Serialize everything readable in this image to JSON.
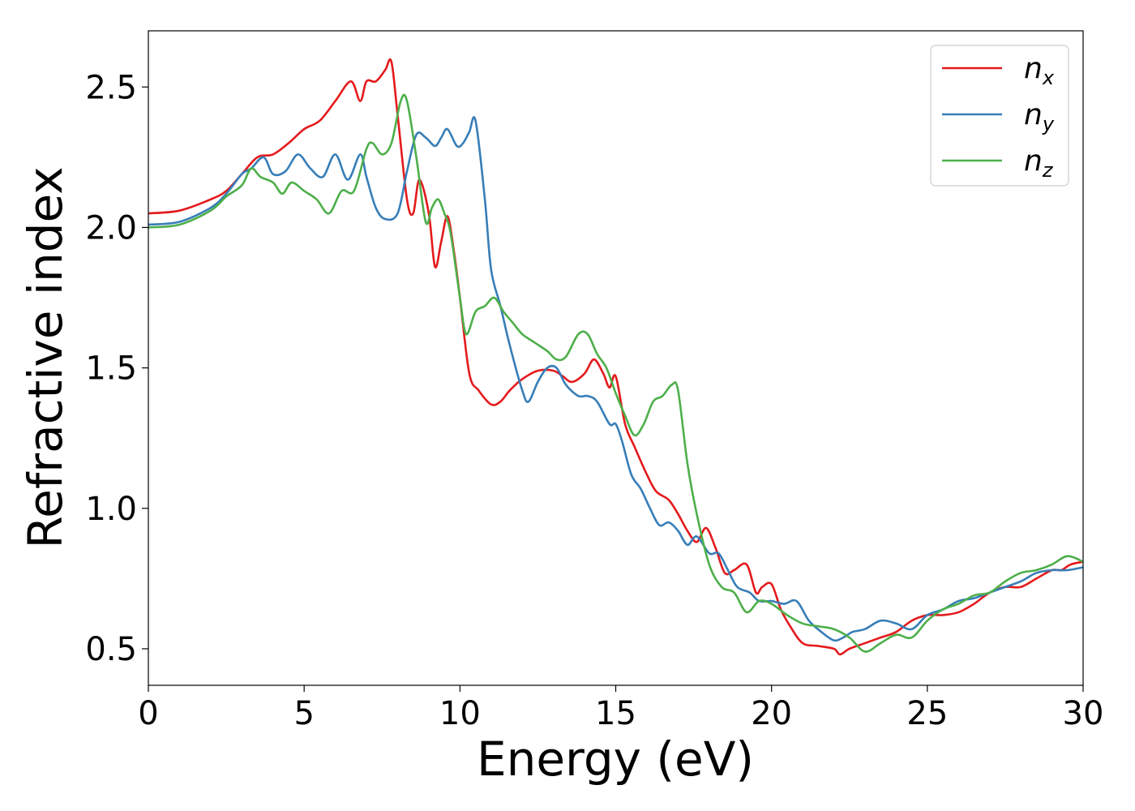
{
  "chart_data": {
    "type": "line",
    "title": "",
    "xlabel": "Energy (eV)",
    "ylabel": "Refractive index",
    "xlim": [
      0,
      30
    ],
    "ylim": [
      0.37,
      2.7
    ],
    "xticks": [
      0,
      5,
      10,
      15,
      20,
      25,
      30
    ],
    "xtick_labels": [
      "0",
      "5",
      "10",
      "15",
      "20",
      "25",
      "30"
    ],
    "yticks": [
      0.5,
      1.0,
      1.5,
      2.0,
      2.5
    ],
    "ytick_labels": [
      "0.5",
      "1.0",
      "1.5",
      "2.0",
      "2.5"
    ],
    "grid": false,
    "legend_position": "top-right",
    "series": [
      {
        "name": "n",
        "subscript": "x",
        "color": "#e41a1c",
        "x": [
          0,
          1,
          2,
          2.5,
          3,
          3.5,
          4,
          4.5,
          5,
          5.5,
          6,
          6.5,
          6.8,
          7,
          7.3,
          7.6,
          7.8,
          8,
          8.3,
          8.5,
          8.7,
          9,
          9.2,
          9.4,
          9.6,
          9.8,
          10,
          10.3,
          10.6,
          11,
          11.3,
          11.6,
          12,
          12.5,
          13,
          13.3,
          13.6,
          14,
          14.3,
          14.6,
          14.8,
          15,
          15.3,
          15.6,
          16,
          16.3,
          16.7,
          17,
          17.3,
          17.6,
          17.9,
          18.2,
          18.5,
          18.8,
          19.2,
          19.5,
          19.7,
          20,
          20.3,
          20.6,
          21,
          21.5,
          22,
          22.2,
          22.5,
          23,
          23.5,
          24,
          24.5,
          25,
          25.5,
          26,
          26.5,
          27,
          27.5,
          28,
          28.5,
          29,
          29.3,
          29.6,
          30
        ],
        "y": [
          2.05,
          2.06,
          2.1,
          2.13,
          2.19,
          2.25,
          2.26,
          2.3,
          2.35,
          2.38,
          2.45,
          2.52,
          2.45,
          2.52,
          2.52,
          2.56,
          2.59,
          2.4,
          2.1,
          2.05,
          2.17,
          2.05,
          1.86,
          1.95,
          2.04,
          1.92,
          1.75,
          1.48,
          1.42,
          1.37,
          1.38,
          1.42,
          1.46,
          1.49,
          1.49,
          1.47,
          1.45,
          1.48,
          1.53,
          1.48,
          1.43,
          1.47,
          1.3,
          1.22,
          1.12,
          1.06,
          1.03,
          0.98,
          0.92,
          0.88,
          0.93,
          0.86,
          0.77,
          0.78,
          0.8,
          0.7,
          0.72,
          0.73,
          0.64,
          0.58,
          0.52,
          0.51,
          0.5,
          0.48,
          0.5,
          0.52,
          0.54,
          0.56,
          0.6,
          0.62,
          0.62,
          0.63,
          0.66,
          0.7,
          0.72,
          0.72,
          0.75,
          0.78,
          0.78,
          0.8,
          0.81
        ]
      },
      {
        "name": "n",
        "subscript": "y",
        "color": "#377eb8",
        "x": [
          0,
          1,
          2,
          2.5,
          3,
          3.3,
          3.7,
          4,
          4.4,
          4.8,
          5.2,
          5.6,
          6,
          6.4,
          6.8,
          7,
          7.3,
          7.6,
          8,
          8.3,
          8.6,
          8.9,
          9.2,
          9.4,
          9.6,
          9.9,
          10.1,
          10.3,
          10.5,
          10.8,
          11,
          11.3,
          11.6,
          12,
          12.2,
          12.5,
          12.8,
          13.1,
          13.4,
          13.8,
          14.1,
          14.4,
          14.8,
          15,
          15.2,
          15.5,
          15.8,
          16.1,
          16.4,
          16.7,
          17,
          17.3,
          17.6,
          18,
          18.3,
          18.6,
          18.9,
          19.3,
          19.6,
          20,
          20.4,
          20.8,
          21.2,
          21.6,
          22,
          22.3,
          22.6,
          23,
          23.5,
          24,
          24.5,
          25,
          25.5,
          26,
          26.5,
          27,
          27.5,
          28,
          28.5,
          29,
          29.5,
          30
        ],
        "y": [
          2.01,
          2.02,
          2.07,
          2.12,
          2.19,
          2.21,
          2.25,
          2.19,
          2.2,
          2.26,
          2.21,
          2.18,
          2.26,
          2.17,
          2.26,
          2.18,
          2.07,
          2.03,
          2.05,
          2.2,
          2.33,
          2.32,
          2.29,
          2.32,
          2.35,
          2.29,
          2.3,
          2.34,
          2.38,
          2.1,
          1.85,
          1.72,
          1.58,
          1.42,
          1.38,
          1.45,
          1.5,
          1.5,
          1.44,
          1.4,
          1.4,
          1.38,
          1.3,
          1.3,
          1.24,
          1.12,
          1.07,
          1.0,
          0.94,
          0.95,
          0.92,
          0.87,
          0.9,
          0.84,
          0.84,
          0.78,
          0.72,
          0.7,
          0.67,
          0.67,
          0.66,
          0.67,
          0.6,
          0.56,
          0.53,
          0.54,
          0.56,
          0.57,
          0.6,
          0.59,
          0.57,
          0.62,
          0.64,
          0.67,
          0.68,
          0.7,
          0.72,
          0.74,
          0.77,
          0.78,
          0.78,
          0.79
        ]
      },
      {
        "name": "n",
        "subscript": "z",
        "color": "#4daf4a",
        "x": [
          0,
          1,
          2,
          2.5,
          3,
          3.3,
          3.6,
          4,
          4.3,
          4.6,
          5,
          5.4,
          5.8,
          6.2,
          6.6,
          7,
          7.2,
          7.5,
          7.8,
          8.1,
          8.3,
          8.6,
          8.9,
          9.1,
          9.3,
          9.5,
          9.7,
          10,
          10.2,
          10.5,
          10.8,
          11.1,
          11.4,
          11.7,
          12,
          12.4,
          12.8,
          13.1,
          13.4,
          13.8,
          14.1,
          14.4,
          14.7,
          15,
          15.3,
          15.6,
          15.9,
          16.2,
          16.5,
          16.8,
          17,
          17.3,
          17.6,
          18,
          18.4,
          18.8,
          19.2,
          19.6,
          20,
          20.5,
          21,
          21.5,
          22,
          22.5,
          23,
          23.5,
          24,
          24.5,
          25,
          25.5,
          26,
          26.5,
          27,
          27.5,
          28,
          28.5,
          29,
          29.5,
          30
        ],
        "y": [
          2.0,
          2.01,
          2.06,
          2.11,
          2.15,
          2.21,
          2.18,
          2.16,
          2.12,
          2.16,
          2.13,
          2.1,
          2.05,
          2.13,
          2.13,
          2.28,
          2.3,
          2.26,
          2.3,
          2.45,
          2.45,
          2.25,
          2.02,
          2.07,
          2.1,
          2.05,
          1.98,
          1.75,
          1.62,
          1.7,
          1.72,
          1.75,
          1.7,
          1.66,
          1.62,
          1.59,
          1.56,
          1.53,
          1.54,
          1.62,
          1.62,
          1.55,
          1.5,
          1.41,
          1.33,
          1.26,
          1.3,
          1.38,
          1.4,
          1.44,
          1.42,
          1.16,
          0.98,
          0.8,
          0.72,
          0.7,
          0.63,
          0.67,
          0.66,
          0.62,
          0.59,
          0.58,
          0.57,
          0.54,
          0.49,
          0.52,
          0.55,
          0.54,
          0.6,
          0.64,
          0.66,
          0.69,
          0.7,
          0.74,
          0.77,
          0.78,
          0.8,
          0.83,
          0.81
        ]
      }
    ]
  }
}
